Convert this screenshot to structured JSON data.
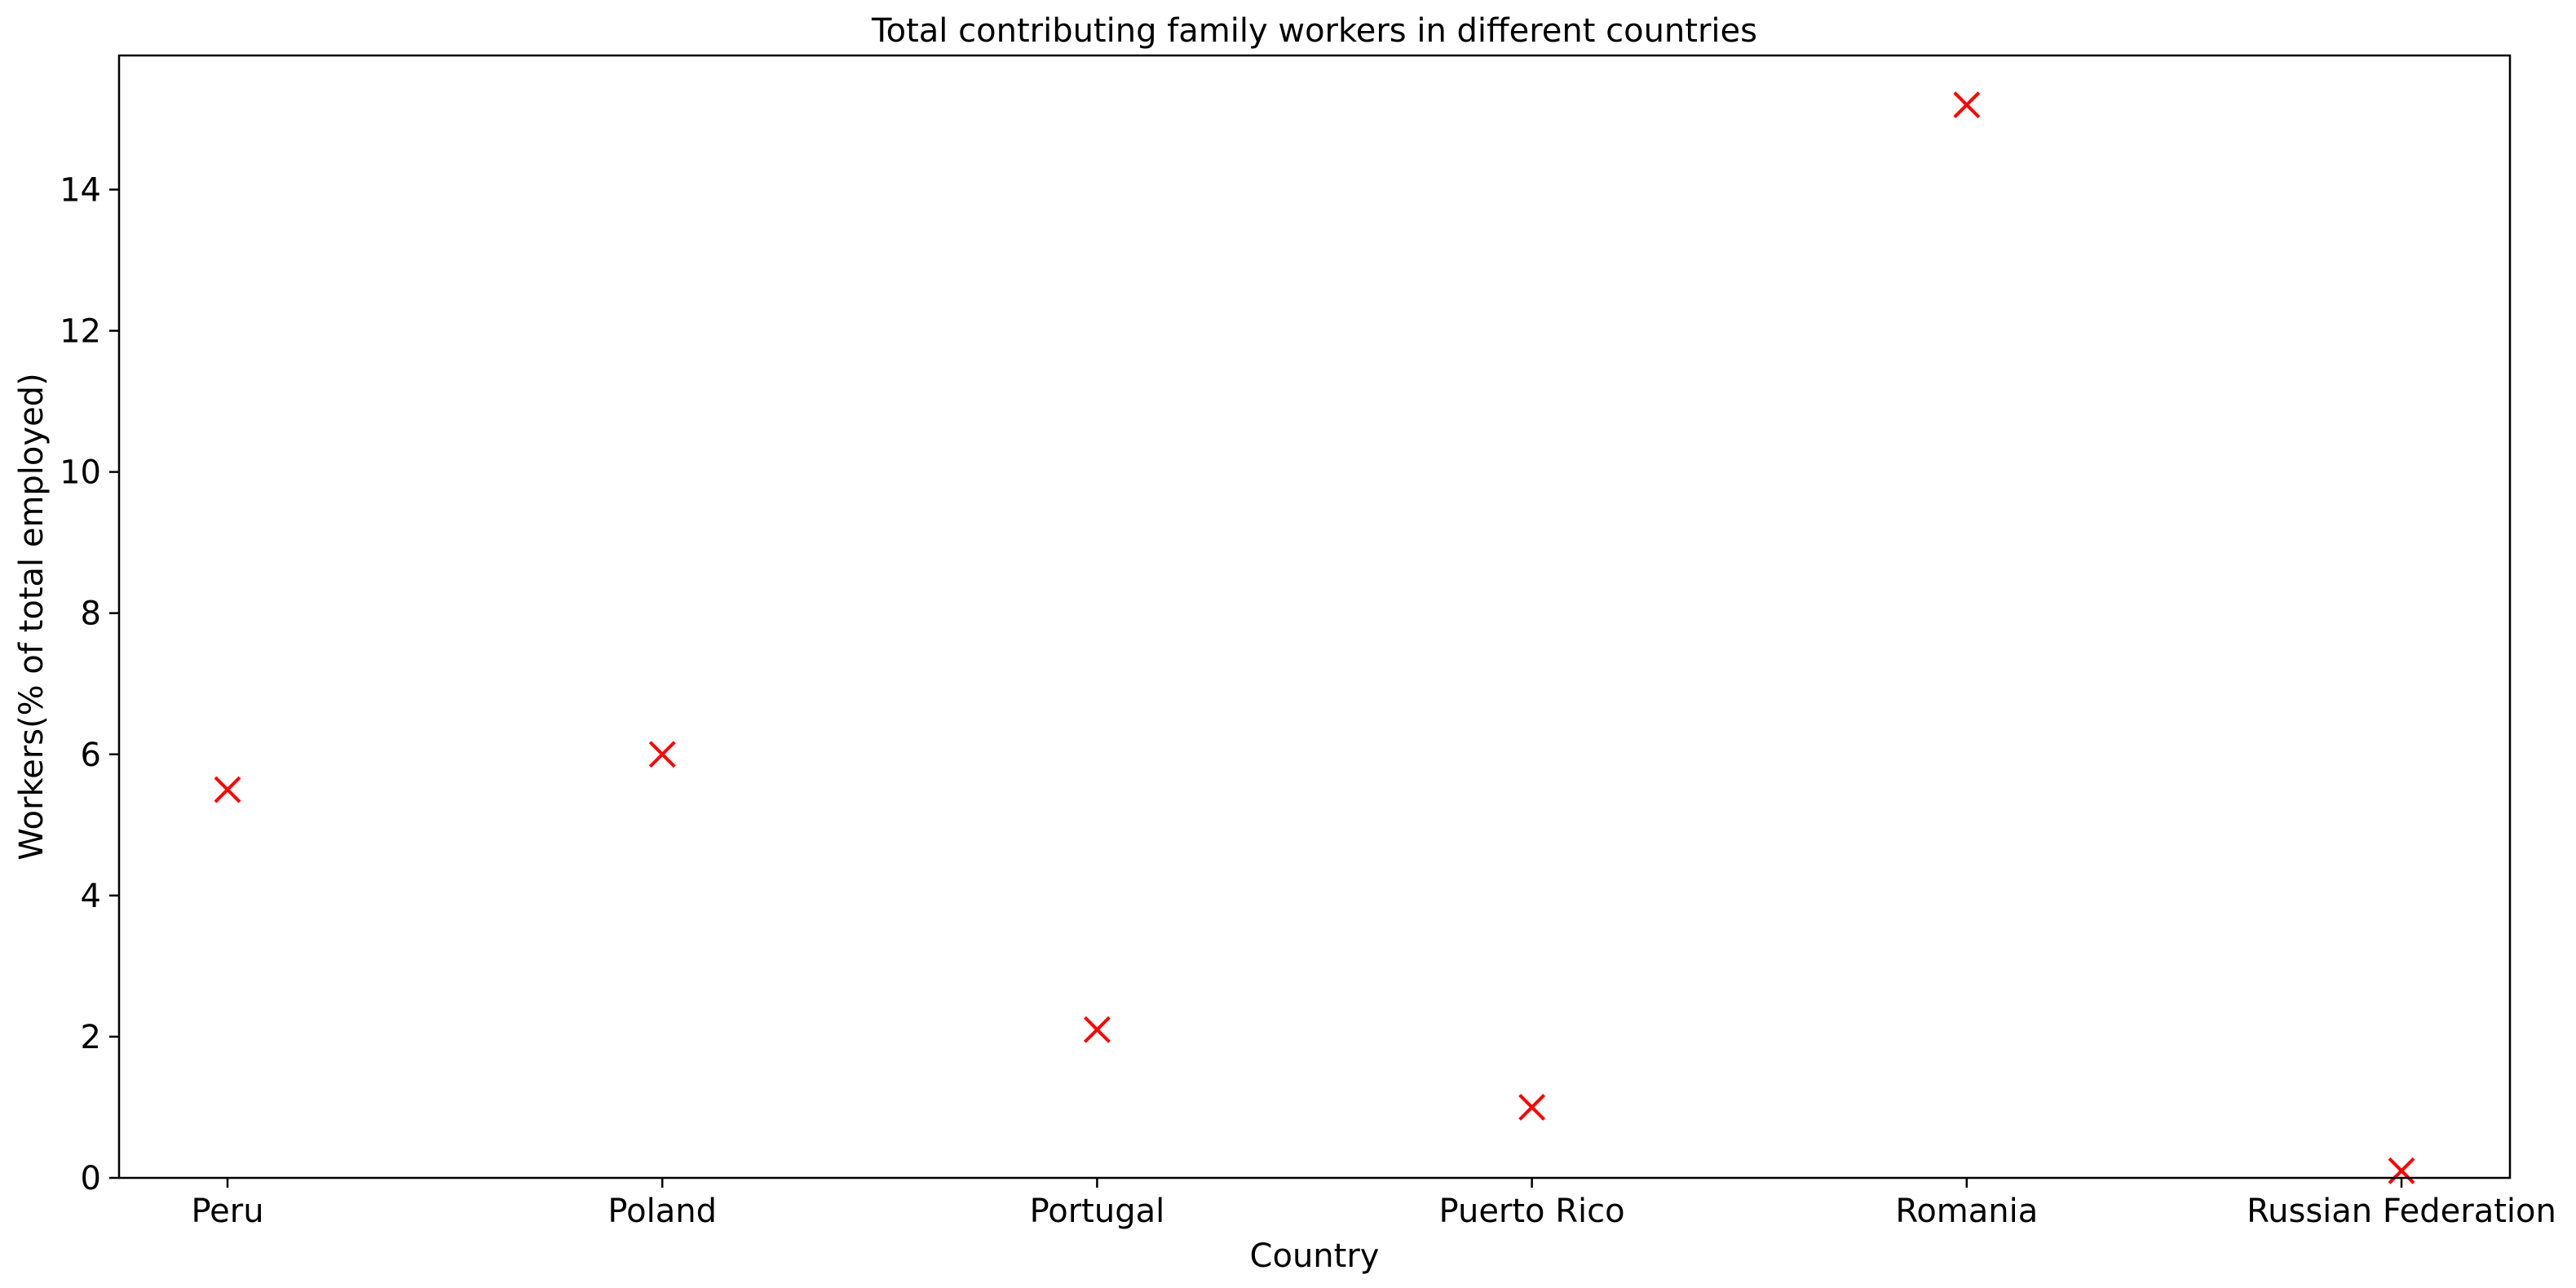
{
  "chart_data": {
    "type": "scatter",
    "title": "Total contributing family workers in different countries",
    "xlabel": "Country",
    "ylabel": "Workers(% of total employed)",
    "categories": [
      "Peru",
      "Poland",
      "Portugal",
      "Puerto Rico",
      "Romania",
      "Russian Federation"
    ],
    "series": [
      {
        "values": [
          5.5,
          6.0,
          2.1,
          1.0,
          15.2,
          0.1
        ]
      }
    ],
    "ylim": [
      0,
      15.9
    ],
    "yticks": [
      0,
      2,
      4,
      6,
      8,
      10,
      12,
      14
    ],
    "grid": false,
    "marker": "x",
    "marker_color": "#ff0000"
  }
}
